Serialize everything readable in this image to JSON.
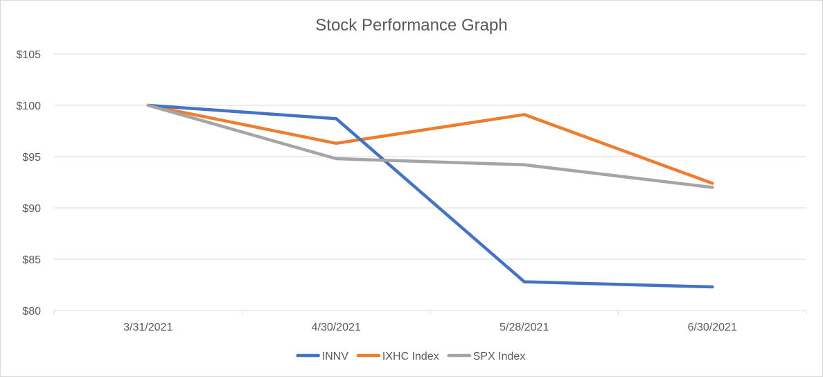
{
  "chart_data": {
    "type": "line",
    "title": "Stock Performance  Graph",
    "xlabel": "",
    "ylabel": "",
    "categories": [
      "3/31/2021",
      "4/30/2021",
      "5/28/2021",
      "6/30/2021"
    ],
    "ylim": [
      80,
      105
    ],
    "yticks": [
      80,
      85,
      90,
      95,
      100,
      105
    ],
    "ytick_labels": [
      "$80",
      "$85",
      "$90",
      "$95",
      "$100",
      "$105"
    ],
    "grid": true,
    "legend_position": "bottom",
    "series": [
      {
        "name": "INNV",
        "color": "#4472c4",
        "values": [
          100,
          98.7,
          82.8,
          82.3
        ]
      },
      {
        "name": "IXHC Index",
        "color": "#ed7d31",
        "values": [
          100,
          96.3,
          99.1,
          92.4
        ]
      },
      {
        "name": "SPX Index",
        "color": "#a5a5a5",
        "values": [
          100,
          94.8,
          94.2,
          92.0
        ]
      }
    ]
  }
}
